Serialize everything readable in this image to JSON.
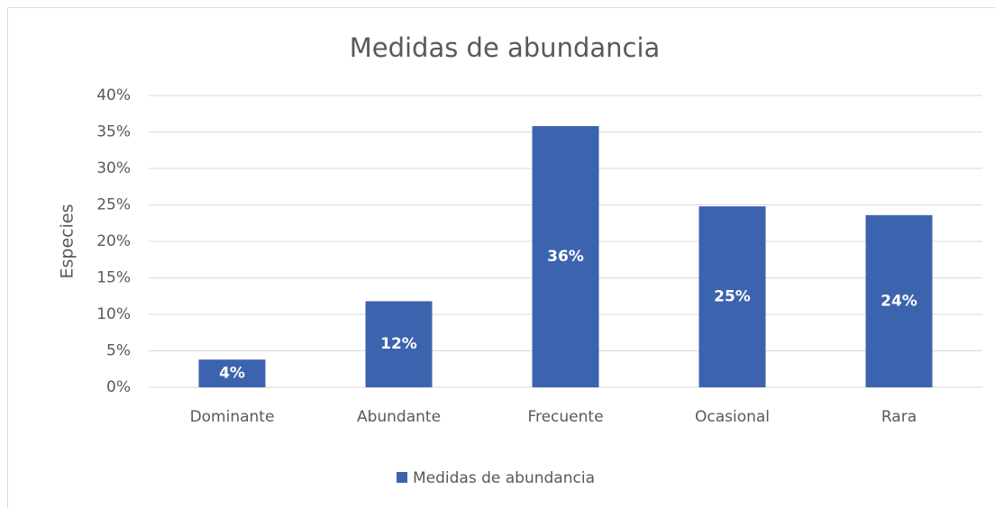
{
  "chart_data": {
    "type": "bar",
    "title": "Medidas de abundancia",
    "y_label": "Especies",
    "categories": [
      "Dominante",
      "Abundante",
      "Frecuente",
      "Ocasional",
      "Rara"
    ],
    "series": [
      {
        "name": "Medidas de abundancia",
        "color": "#3c63ad",
        "values": [
          3.8,
          11.8,
          35.8,
          24.8,
          23.6
        ],
        "value_labels": [
          "4%",
          "12%",
          "36%",
          "25%",
          "24%"
        ]
      }
    ],
    "ylim": [
      0,
      40
    ],
    "yticks": [
      {
        "value": 0,
        "label": "0%"
      },
      {
        "value": 5,
        "label": "5%"
      },
      {
        "value": 10,
        "label": "10%"
      },
      {
        "value": 15,
        "label": "15%"
      },
      {
        "value": 20,
        "label": "20%"
      },
      {
        "value": 25,
        "label": "25%"
      },
      {
        "value": 30,
        "label": "30%"
      },
      {
        "value": 35,
        "label": "35%"
      },
      {
        "value": 40,
        "label": "40%"
      }
    ],
    "grid": true,
    "legend": "bottom"
  }
}
